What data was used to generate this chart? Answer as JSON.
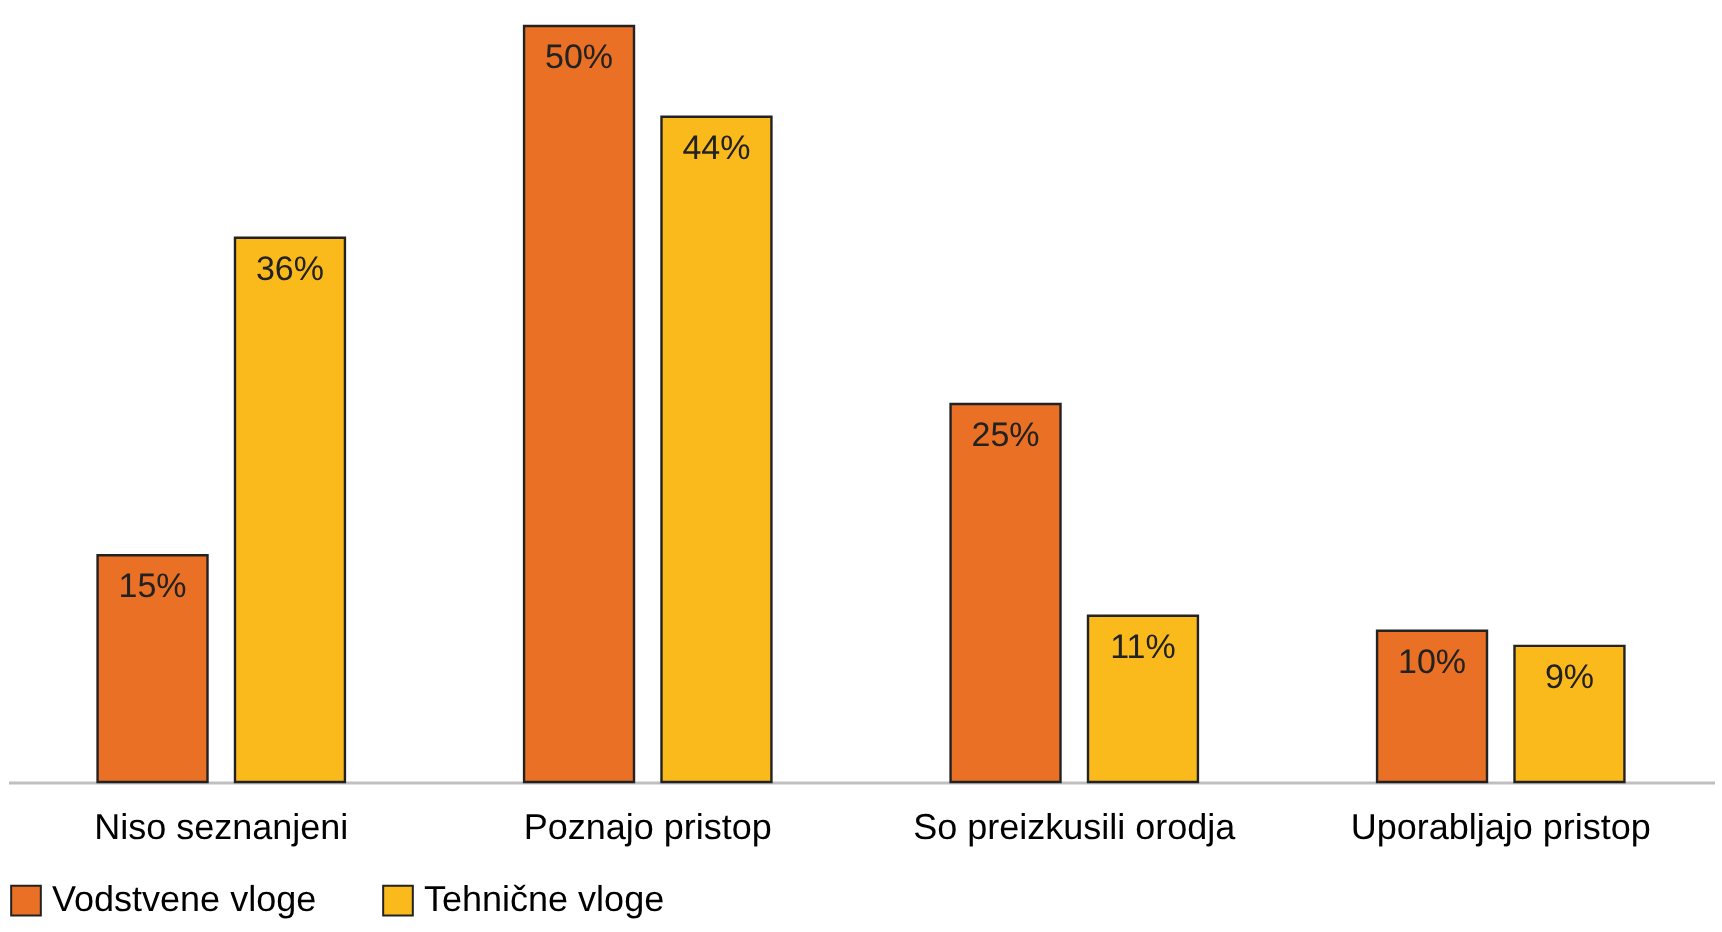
{
  "chart_data": {
    "type": "bar",
    "categories": [
      "Niso seznanjeni",
      "Poznajo pristop",
      "So preizkusili orodja",
      "Uporabljajo pristop"
    ],
    "series": [
      {
        "name": "Vodstvene vloge",
        "color": "#e97024",
        "values": [
          15,
          50,
          25,
          10
        ],
        "value_labels": [
          "15%",
          "50%",
          "25%",
          "10%"
        ]
      },
      {
        "name": "Tehnične vloge",
        "color": "#fbba1c",
        "values": [
          36,
          44,
          11,
          9
        ],
        "value_labels": [
          "36%",
          "44%",
          "11%",
          "9%"
        ]
      }
    ],
    "legend": "bottom"
  }
}
